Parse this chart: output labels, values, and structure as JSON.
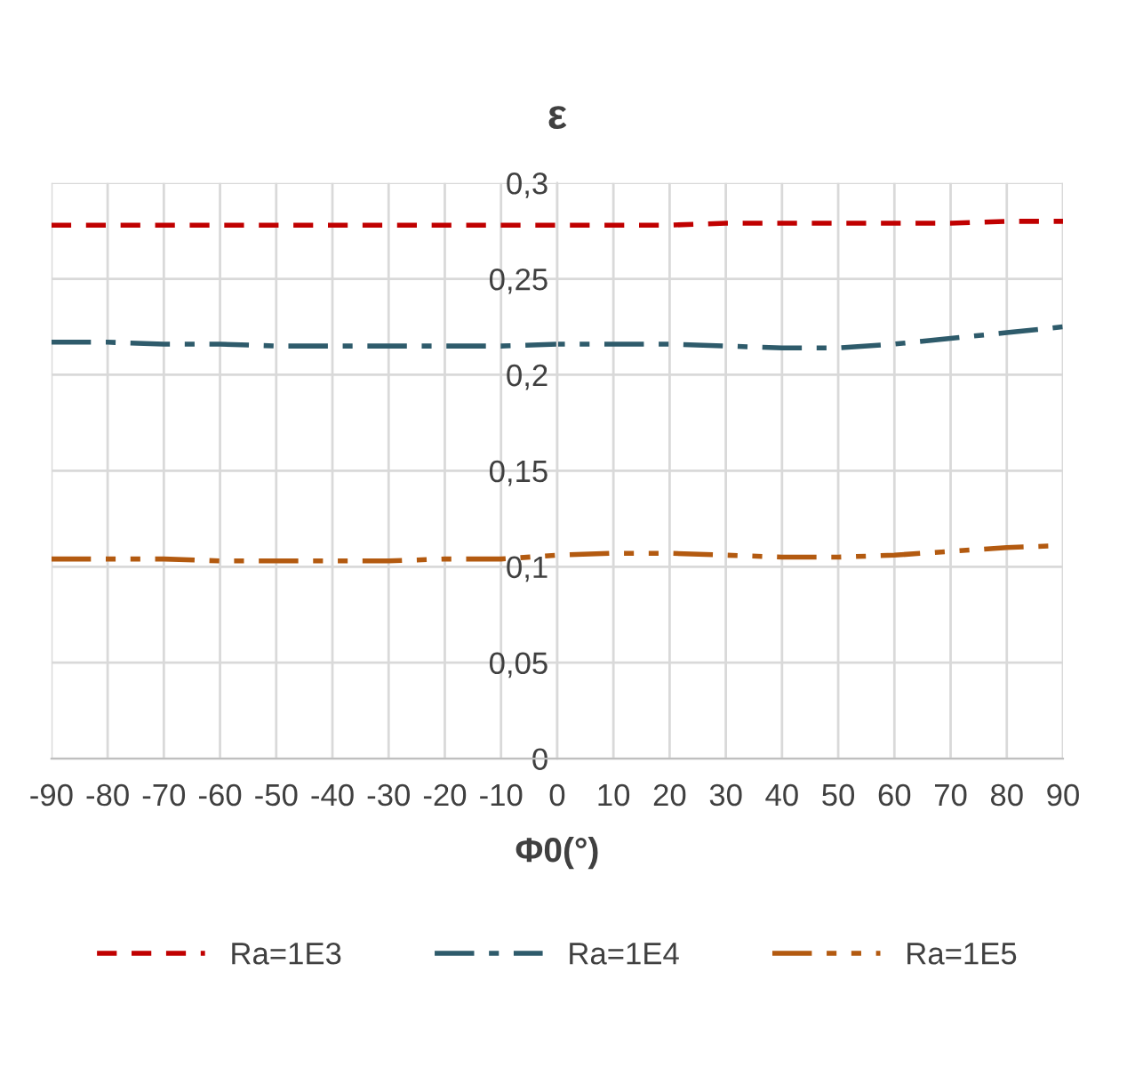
{
  "chart_data": {
    "type": "line",
    "title": "ε",
    "xlabel": "Φ0(°)",
    "x": [
      -90,
      -80,
      -70,
      -60,
      -50,
      -40,
      -30,
      -20,
      -10,
      0,
      10,
      20,
      30,
      40,
      50,
      60,
      70,
      80,
      90
    ],
    "series": [
      {
        "name": "Ra=1E3",
        "color": "#c00000",
        "line_style": "dashed",
        "values": [
          0.278,
          0.278,
          0.278,
          0.278,
          0.278,
          0.278,
          0.278,
          0.278,
          0.278,
          0.278,
          0.278,
          0.278,
          0.279,
          0.279,
          0.279,
          0.279,
          0.279,
          0.28,
          0.28
        ]
      },
      {
        "name": "Ra=1E4",
        "color": "#2e5b6b",
        "line_style": "dashdot",
        "values": [
          0.217,
          0.217,
          0.216,
          0.216,
          0.215,
          0.215,
          0.215,
          0.215,
          0.215,
          0.216,
          0.216,
          0.216,
          0.215,
          0.214,
          0.214,
          0.216,
          0.219,
          0.222,
          0.225
        ]
      },
      {
        "name": "Ra=1E5",
        "color": "#b35a10",
        "line_style": "dashdotdot",
        "values": [
          0.104,
          0.104,
          0.104,
          0.103,
          0.103,
          0.103,
          0.103,
          0.104,
          0.104,
          0.106,
          0.107,
          0.107,
          0.106,
          0.105,
          0.105,
          0.106,
          0.108,
          0.11,
          0.111
        ]
      }
    ],
    "xlim": [
      -90,
      90
    ],
    "xticks": [
      -90,
      -80,
      -70,
      -60,
      -50,
      -40,
      -30,
      -20,
      -10,
      0,
      10,
      20,
      30,
      40,
      50,
      60,
      70,
      80,
      90
    ],
    "ylim": [
      0,
      0.3
    ],
    "yticks": [
      0,
      {
        "value": 0.05,
        "label": "0,05"
      },
      {
        "value": 0.1,
        "label": "0,1"
      },
      {
        "value": 0.15,
        "label": "0,15"
      },
      {
        "value": 0.2,
        "label": "0,2"
      },
      {
        "value": 0.25,
        "label": "0,25"
      },
      {
        "value": 0.3,
        "label": "0,3"
      }
    ],
    "grid": true,
    "legend": "bottom",
    "marker": "none"
  }
}
